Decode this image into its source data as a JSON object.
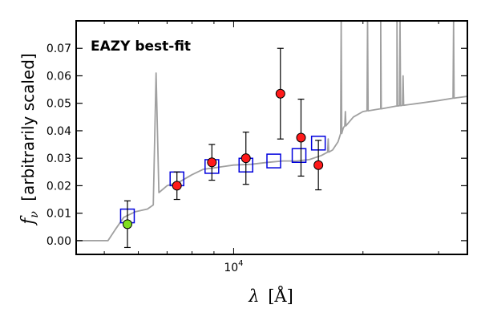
{
  "chart_data": {
    "type": "scatter",
    "annotation": "EAZY best-fit",
    "annotation_color": "#ff0000",
    "xlabel_symbol": "λ",
    "xlabel_unit": "[Å]",
    "ylabel_symbol": "f",
    "ylabel_sub": "ν",
    "ylabel_text": "[arbitrarily scaled]",
    "x_scale": "log",
    "xlim": [
      4300,
      35000
    ],
    "ylim": [
      -0.005,
      0.08
    ],
    "x_ticks": [
      {
        "value": 10000,
        "base": "10",
        "exp": "4"
      }
    ],
    "y_ticks": [
      {
        "value": 0.0,
        "label": "0.00"
      },
      {
        "value": 0.01,
        "label": "0.01"
      },
      {
        "value": 0.02,
        "label": "0.02"
      },
      {
        "value": 0.03,
        "label": "0.03"
      },
      {
        "value": 0.04,
        "label": "0.04"
      },
      {
        "value": 0.05,
        "label": "0.05"
      },
      {
        "value": 0.06,
        "label": "0.06"
      },
      {
        "value": 0.07,
        "label": "0.07"
      }
    ],
    "grid": false,
    "colors": {
      "sed": "#a0a0a0",
      "model": "#0000dd",
      "observed": "#ff1a1a",
      "observed_highlight": "#80e020"
    },
    "sed_template": [
      [
        4300,
        0.0
      ],
      [
        5100,
        0.0
      ],
      [
        5300,
        0.004
      ],
      [
        5550,
        0.0085
      ],
      [
        5900,
        0.0105
      ],
      [
        6300,
        0.0115
      ],
      [
        6500,
        0.013
      ],
      [
        6600,
        0.061
      ],
      [
        6700,
        0.0175
      ],
      [
        7000,
        0.02
      ],
      [
        7500,
        0.0215
      ],
      [
        8000,
        0.024
      ],
      [
        8500,
        0.026
      ],
      [
        9000,
        0.0265
      ],
      [
        9500,
        0.027
      ],
      [
        10000,
        0.0275
      ],
      [
        11000,
        0.0278
      ],
      [
        12000,
        0.0285
      ],
      [
        13000,
        0.029
      ],
      [
        14000,
        0.029
      ],
      [
        15000,
        0.0295
      ],
      [
        16000,
        0.031
      ],
      [
        17000,
        0.033
      ],
      [
        17500,
        0.036
      ],
      [
        18000,
        0.041
      ],
      [
        19000,
        0.045
      ],
      [
        20000,
        0.047
      ],
      [
        22000,
        0.048
      ],
      [
        24000,
        0.049
      ],
      [
        27000,
        0.05
      ],
      [
        30000,
        0.051
      ],
      [
        33000,
        0.052
      ],
      [
        35000,
        0.0525
      ]
    ],
    "sed_emission_lines": [
      {
        "x": 16600,
        "peak": 0.037
      },
      {
        "x": 17800,
        "peak": 0.08
      },
      {
        "x": 18200,
        "peak": 0.047
      },
      {
        "x": 20500,
        "peak": 0.08
      },
      {
        "x": 22000,
        "peak": 0.08
      },
      {
        "x": 24000,
        "peak": 0.08
      },
      {
        "x": 24400,
        "peak": 0.08
      },
      {
        "x": 24800,
        "peak": 0.06
      },
      {
        "x": 32500,
        "peak": 0.08
      }
    ],
    "model_photometry": [
      {
        "x": 5660,
        "y": 0.009
      },
      {
        "x": 7380,
        "y": 0.0225
      },
      {
        "x": 8900,
        "y": 0.027
      },
      {
        "x": 10680,
        "y": 0.0275
      },
      {
        "x": 12400,
        "y": 0.029
      },
      {
        "x": 14200,
        "y": 0.031
      },
      {
        "x": 15750,
        "y": 0.0355
      }
    ],
    "observed_photometry": [
      {
        "x": 5660,
        "y": 0.006,
        "err": 0.0085,
        "highlight": true
      },
      {
        "x": 7380,
        "y": 0.02,
        "err": 0.005,
        "highlight": false
      },
      {
        "x": 8900,
        "y": 0.0285,
        "err": 0.0065,
        "highlight": false
      },
      {
        "x": 10680,
        "y": 0.03,
        "err": 0.0095,
        "highlight": false
      },
      {
        "x": 12850,
        "y": 0.0535,
        "err": 0.0165,
        "highlight": false
      },
      {
        "x": 14350,
        "y": 0.0375,
        "err": 0.014,
        "highlight": false
      },
      {
        "x": 15750,
        "y": 0.0275,
        "err": 0.009,
        "highlight": false
      }
    ]
  }
}
